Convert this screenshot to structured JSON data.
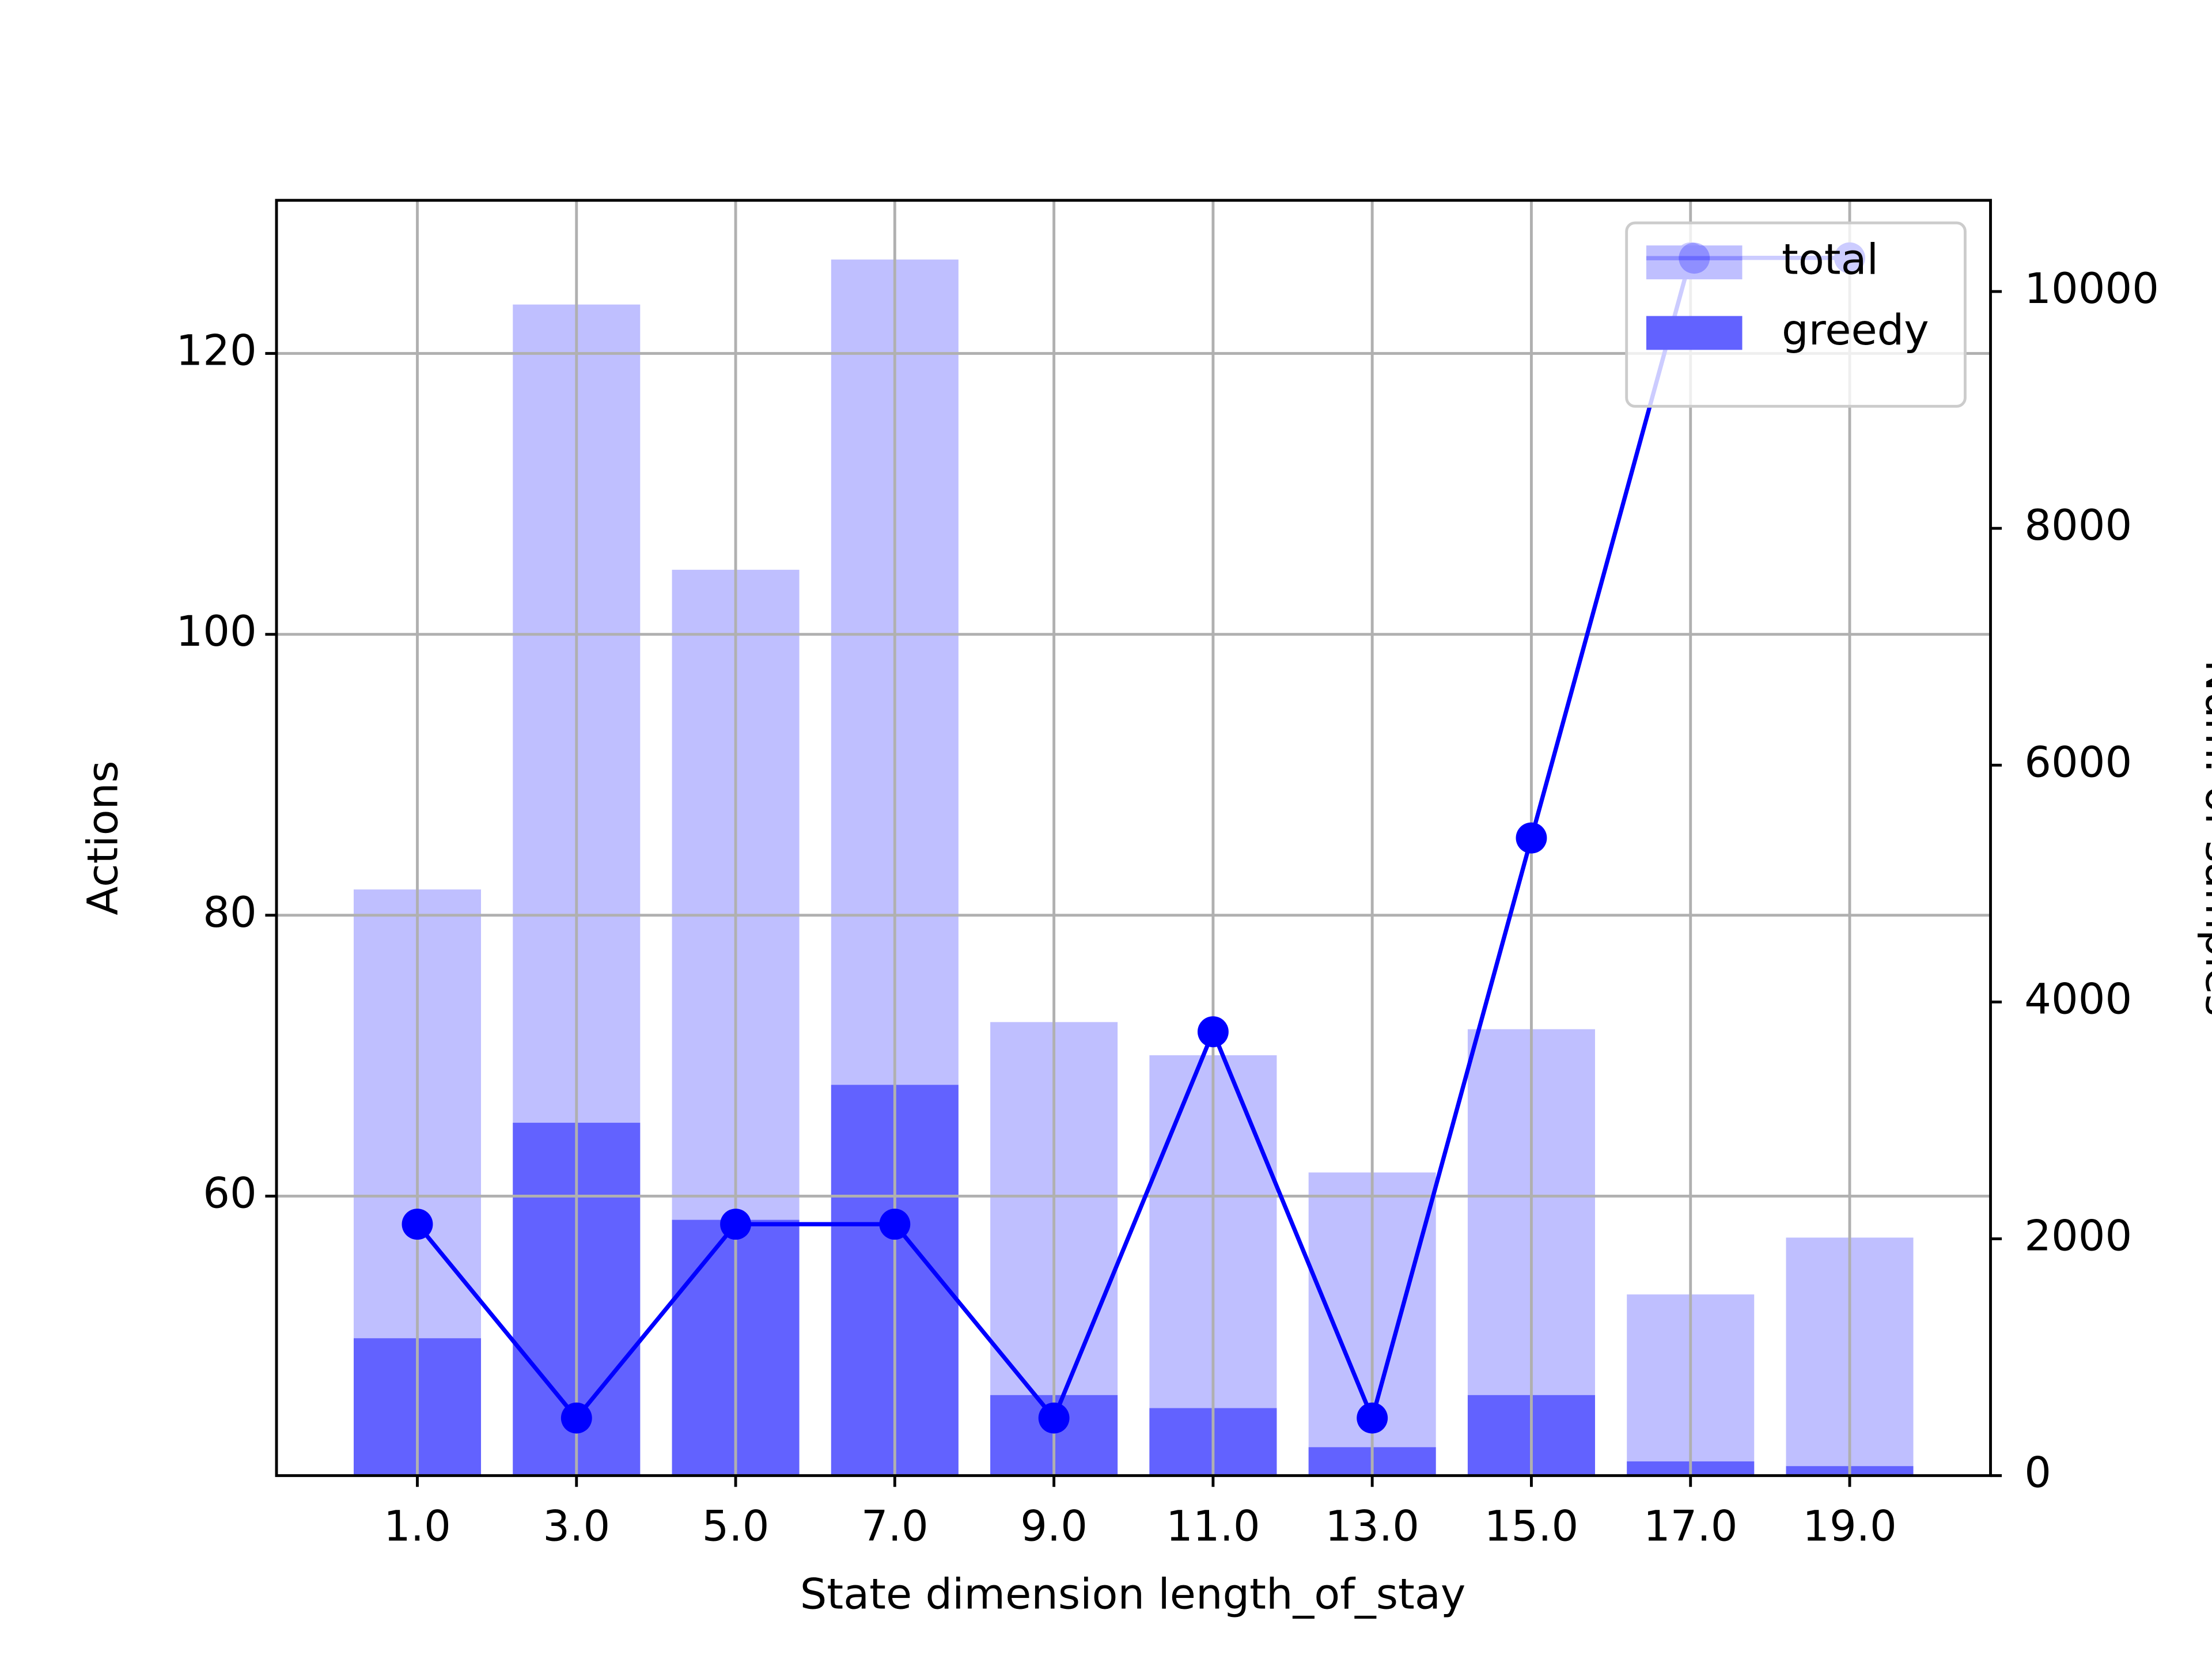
{
  "chart_data": {
    "type": "bar",
    "xlabel": "State dimension length_of_stay",
    "ylabel": "Actions",
    "y2label": "Num. of samples",
    "x": [
      1,
      3,
      5,
      7,
      9,
      11,
      13,
      15,
      17,
      19
    ],
    "xlim": [
      -0.77,
      20.77
    ],
    "xticks": [
      {
        "value": 1,
        "label": "1.0"
      },
      {
        "value": 3,
        "label": "3.0"
      },
      {
        "value": 5,
        "label": "5.0"
      },
      {
        "value": 7,
        "label": "7.0"
      },
      {
        "value": 9,
        "label": "9.0"
      },
      {
        "value": 11,
        "label": "11.0"
      },
      {
        "value": 13,
        "label": "13.0"
      },
      {
        "value": 15,
        "label": "15.0"
      },
      {
        "value": 17,
        "label": "17.0"
      },
      {
        "value": 19,
        "label": "19.0"
      }
    ],
    "ylim": [
      40.1,
      130.9
    ],
    "yticks": [
      60,
      80,
      100,
      120
    ],
    "y2lim": [
      0,
      10770
    ],
    "y2ticks": [
      0,
      2000,
      4000,
      6000,
      8000,
      10000
    ],
    "grid": true,
    "legend": "upper right",
    "series": [
      {
        "name": "total",
        "type": "bar",
        "axis": "y2",
        "color": "#bfbfff",
        "values": [
          4950,
          9890,
          7650,
          10270,
          3830,
          3550,
          2560,
          3770,
          1530,
          2010
        ]
      },
      {
        "name": "greedy",
        "type": "bar",
        "axis": "y2",
        "color": "#6262ff",
        "values": [
          1160,
          2980,
          2160,
          3300,
          680,
          570,
          240,
          680,
          120,
          80
        ]
      },
      {
        "type": "line",
        "axis": "y",
        "color": "#0000ff",
        "values": [
          58.0,
          44.2,
          58.0,
          58.0,
          44.2,
          71.7,
          44.2,
          85.5,
          126.8,
          126.8
        ]
      }
    ]
  }
}
